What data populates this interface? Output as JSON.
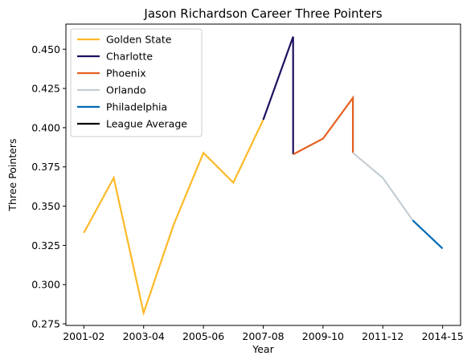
{
  "chart_data": {
    "type": "line",
    "title": "Jason Richardson Career Three Pointers",
    "xlabel": "Year",
    "ylabel": "Three Pointers",
    "x_tick_labels": [
      "2001-02",
      "2003-04",
      "2005-06",
      "2007-08",
      "2009-10",
      "2011-12",
      "2014-15"
    ],
    "x_tick_positions": [
      0,
      2,
      4,
      6,
      8,
      10,
      12
    ],
    "xlim": [
      -0.6,
      12.6
    ],
    "ylim": [
      0.274,
      0.466
    ],
    "y_ticks": [
      0.275,
      0.3,
      0.325,
      0.35,
      0.375,
      0.4,
      0.425,
      0.45
    ],
    "y_tick_labels": [
      "0.275",
      "0.300",
      "0.325",
      "0.350",
      "0.375",
      "0.400",
      "0.425",
      "0.450"
    ],
    "legend_position": "top-left",
    "series": [
      {
        "name": "Golden State",
        "color": "#FDB927",
        "x": [
          0,
          1,
          2,
          3,
          4,
          5,
          6
        ],
        "values": [
          0.333,
          0.368,
          0.282,
          0.338,
          0.384,
          0.365,
          0.405
        ]
      },
      {
        "name": "Charlotte",
        "color": "#1D1160",
        "x": [
          6,
          7,
          7
        ],
        "values": [
          0.405,
          0.458,
          0.383
        ]
      },
      {
        "name": "Phoenix",
        "color": "#E56020",
        "x": [
          7,
          8,
          9,
          9
        ],
        "values": [
          0.383,
          0.393,
          0.419,
          0.384
        ]
      },
      {
        "name": "Orlando",
        "color": "#C4CED4",
        "x": [
          9,
          10,
          11
        ],
        "values": [
          0.384,
          0.368,
          0.341
        ]
      },
      {
        "name": "Philadelphia",
        "color": "#006BB6",
        "x": [
          11,
          12
        ],
        "values": [
          0.341,
          0.323
        ]
      },
      {
        "name": "League Average",
        "color": "#000000",
        "x": [],
        "values": []
      }
    ]
  }
}
